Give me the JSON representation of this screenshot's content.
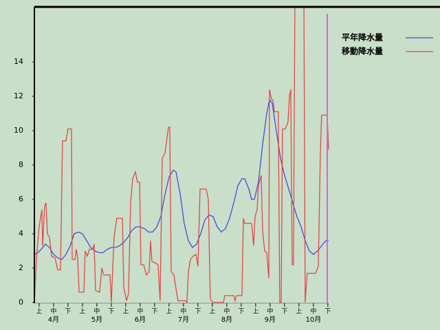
{
  "chart_data": {
    "type": "line",
    "background": "#c9dfc9",
    "xlim": [
      0,
      281
    ],
    "ylim": [
      0,
      17.2
    ],
    "yticks": [
      0,
      2,
      4,
      6,
      8,
      10,
      12,
      14
    ],
    "xticks": [
      {
        "value": 3.3,
        "label": "上"
      },
      {
        "value": 13.3,
        "label": "中"
      },
      {
        "value": 23.3,
        "label": "下"
      },
      {
        "value": 33.3,
        "label": "上"
      },
      {
        "value": 43.3,
        "label": "中"
      },
      {
        "value": 53.3,
        "label": "下"
      },
      {
        "value": 63.3,
        "label": "上"
      },
      {
        "value": 73.3,
        "label": "中"
      },
      {
        "value": 83.3,
        "label": "下"
      },
      {
        "value": 93.3,
        "label": "上"
      },
      {
        "value": 103.3,
        "label": "中"
      },
      {
        "value": 113.3,
        "label": "下"
      },
      {
        "value": 123.3,
        "label": "上"
      },
      {
        "value": 133.3,
        "label": "中"
      },
      {
        "value": 143.3,
        "label": "下"
      },
      {
        "value": 153.3,
        "label": "上"
      },
      {
        "value": 163.3,
        "label": "中"
      },
      {
        "value": 173.3,
        "label": "下"
      },
      {
        "value": 183.3,
        "label": "上"
      },
      {
        "value": 193.3,
        "label": "中"
      },
      {
        "value": 203.3,
        "label": "下"
      }
    ],
    "months": [
      {
        "value": 13.3,
        "label": "4月"
      },
      {
        "value": 43.3,
        "label": "5月"
      },
      {
        "value": 73.3,
        "label": "6月"
      },
      {
        "value": 103.3,
        "label": "7月"
      },
      {
        "value": 133.3,
        "label": "8月"
      },
      {
        "value": 163.3,
        "label": "9月"
      },
      {
        "value": 193.3,
        "label": "10月"
      }
    ],
    "today_marker": {
      "value": 202.9,
      "color": "#e060e0"
    },
    "series": [
      {
        "name": "平年降水量",
        "color": "#4848e0",
        "x": [
          0,
          2.4,
          4.8,
          7.6,
          10.5,
          13.3,
          16.2,
          19,
          21.9,
          24.8,
          27.6,
          30.5,
          33.3,
          36.2,
          39,
          41.9,
          44.8,
          47.6,
          50.5,
          53.3,
          56.2,
          59,
          61.9,
          64.8,
          67.6,
          70.5,
          73.3,
          76.2,
          79,
          81.9,
          84.8,
          87.6,
          90.5,
          93.3,
          96.2,
          98.1,
          101,
          103.8,
          106.7,
          109.5,
          112.4,
          115.2,
          118.1,
          121,
          123.8,
          126.7,
          129.5,
          132.4,
          135.2,
          138.1,
          141,
          143.8,
          145.7,
          148.6,
          150.5,
          152.4,
          155.2,
          158.1,
          161,
          162.9,
          164.8,
          167.6,
          170.5,
          173.3,
          176.2,
          179,
          181.9,
          184.8,
          187.6,
          190.5,
          193.3,
          196.2,
          199,
          201.9,
          203.8
        ],
        "values": [
          2.8,
          2.9,
          3.1,
          3.4,
          3.2,
          2.8,
          2.6,
          2.5,
          2.8,
          3.3,
          4.0,
          4.1,
          4.0,
          3.6,
          3.2,
          3.0,
          2.9,
          2.9,
          3.1,
          3.2,
          3.2,
          3.3,
          3.5,
          3.8,
          4.2,
          4.4,
          4.4,
          4.3,
          4.1,
          4.1,
          4.4,
          5.0,
          6.3,
          7.3,
          7.7,
          7.6,
          6.3,
          4.6,
          3.6,
          3.2,
          3.4,
          4.0,
          4.8,
          5.1,
          5.0,
          4.4,
          4.1,
          4.3,
          4.9,
          5.8,
          6.8,
          7.2,
          7.2,
          6.6,
          6.0,
          6.0,
          7.0,
          9.2,
          11.0,
          11.8,
          11.6,
          10.0,
          8.4,
          7.4,
          6.6,
          5.8,
          5.0,
          4.4,
          3.6,
          3.0,
          2.8,
          3.0,
          3.3,
          3.6,
          3.6
        ]
      },
      {
        "name": "移動降水量",
        "color": "#e04848",
        "x": [
          0,
          1.4,
          3.3,
          5.2,
          5.7,
          7.1,
          8.1,
          9,
          10.5,
          11.9,
          14.3,
          16.2,
          18.1,
          19.5,
          21.9,
          23.3,
          25.7,
          26.2,
          28.1,
          29,
          30,
          31,
          34.3,
          35.2,
          36.7,
          38.1,
          40.5,
          41.4,
          42.4,
          45.2,
          46.7,
          48.1,
          52.4,
          53.3,
          55.2,
          57.1,
          61,
          61.9,
          63.8,
          65.2,
          66.7,
          68.1,
          70,
          71.4,
          72.9,
          73.8,
          75.7,
          77.6,
          79.5,
          80.5,
          81.4,
          83.8,
          85.7,
          87.1,
          88.6,
          90.5,
          91.9,
          92.9,
          93.8,
          94.8,
          96.7,
          98.1,
          99.5,
          104.8,
          105.7,
          106.7,
          108.1,
          110,
          111.9,
          113.3,
          114.8,
          119,
          120.5,
          121.9,
          123.8,
          131,
          131.9,
          138.1,
          139,
          140,
          143.8,
          144.8,
          145.7,
          150.5,
          151.9,
          152.9,
          154.3,
          155.2,
          157.1,
          158.1,
          159.5,
          161,
          162.4,
          162.9,
          164.3,
          165.2,
          166.2,
          169,
          170,
          171,
          171.9,
          173.8,
          174.8,
          175.7,
          176.7,
          177.6,
          178.6,
          179.5,
          180.5,
          186.7,
          187.6,
          189,
          194.8,
          196.7,
          198.1,
          199,
          202.9,
          203.8
        ],
        "values": [
          0,
          2.5,
          4.4,
          5.4,
          3.3,
          5.6,
          5.8,
          4,
          3.8,
          2.7,
          2.6,
          1.9,
          1.9,
          9.4,
          9.4,
          10.1,
          10.1,
          2.5,
          2.5,
          3.1,
          2.6,
          0.6,
          0.6,
          3,
          2.7,
          3.1,
          3.1,
          3.4,
          0.7,
          0.6,
          2,
          1.6,
          1.6,
          0,
          3.8,
          4.9,
          4.9,
          0.9,
          0.1,
          0.5,
          5.8,
          7.2,
          7.6,
          7,
          7,
          2.2,
          2.2,
          1.6,
          1.8,
          3.6,
          2.4,
          2.3,
          2.2,
          0.1,
          8.4,
          8.7,
          9.6,
          10.2,
          10.2,
          1.8,
          1.6,
          0.8,
          0.1,
          0.1,
          0,
          1.8,
          2.5,
          2.7,
          2.8,
          2.1,
          6.6,
          6.6,
          6,
          0.2,
          0,
          0,
          0.4,
          0.4,
          0.1,
          0.4,
          0.4,
          4.9,
          4.6,
          4.6,
          3.3,
          5,
          5.4,
          6.8,
          7.4,
          4.2,
          3,
          2.9,
          1.4,
          12.4,
          11.8,
          11.8,
          11.1,
          11.1,
          0,
          0,
          10.1,
          10.1,
          10.3,
          10.5,
          12,
          12.4,
          2.2,
          2.2,
          18,
          18,
          0,
          1.7,
          1.7,
          2.1,
          8.5,
          10.9,
          10.9,
          8.9
        ]
      }
    ]
  }
}
